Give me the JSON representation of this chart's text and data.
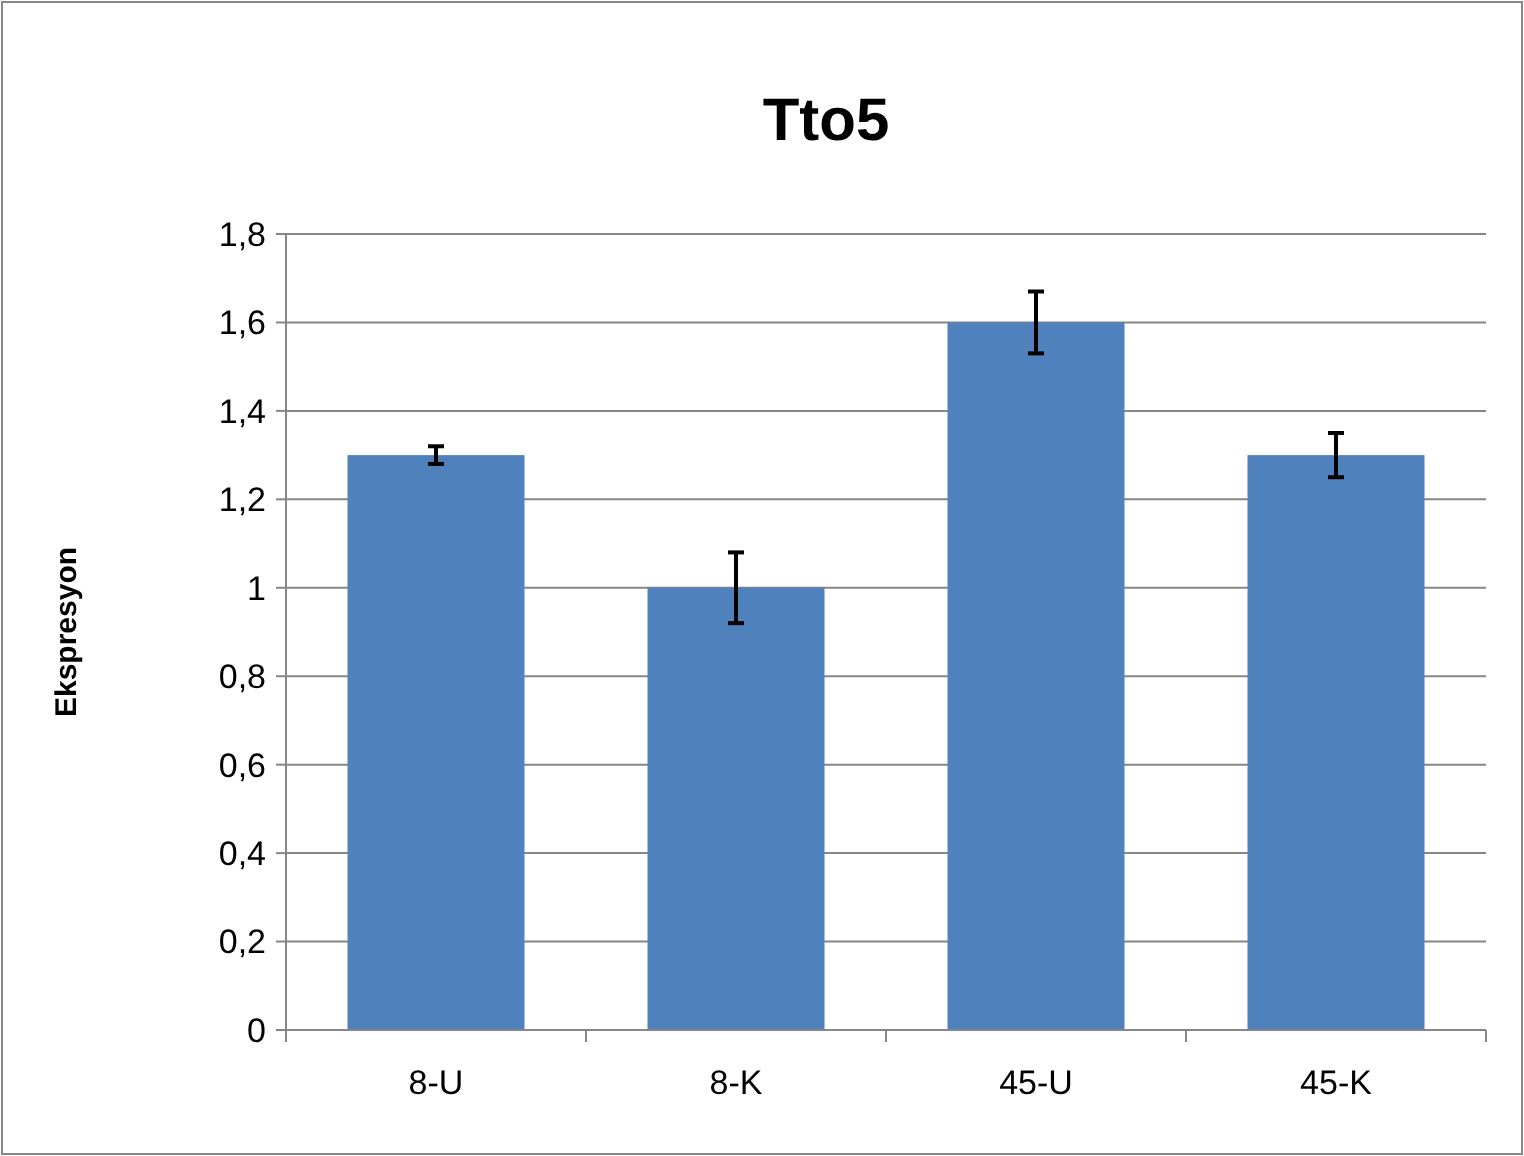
{
  "chart_data": {
    "type": "bar",
    "title": "Tto5",
    "ylabel": "Ekspresyon",
    "categories": [
      "8-U",
      "8-K",
      "45-U",
      "45-K"
    ],
    "values": [
      1.3,
      1.0,
      1.6,
      1.3
    ],
    "errors": [
      0.02,
      0.08,
      0.07,
      0.05
    ],
    "color": "#4f81bd",
    "ylim": [
      0,
      1.8
    ],
    "yticks": [
      0,
      {
        "value": 0.2,
        "label": "0,2"
      },
      {
        "value": 0.4,
        "label": "0,4"
      },
      {
        "value": 0.6,
        "label": "0,6"
      },
      {
        "value": 0.8,
        "label": "0,8"
      },
      1,
      {
        "value": 1.2,
        "label": "1,2"
      },
      {
        "value": 1.4,
        "label": "1,4"
      },
      {
        "value": 1.6,
        "label": "1,6"
      },
      {
        "value": 1.8,
        "label": "1,8"
      }
    ],
    "grid": "y"
  }
}
